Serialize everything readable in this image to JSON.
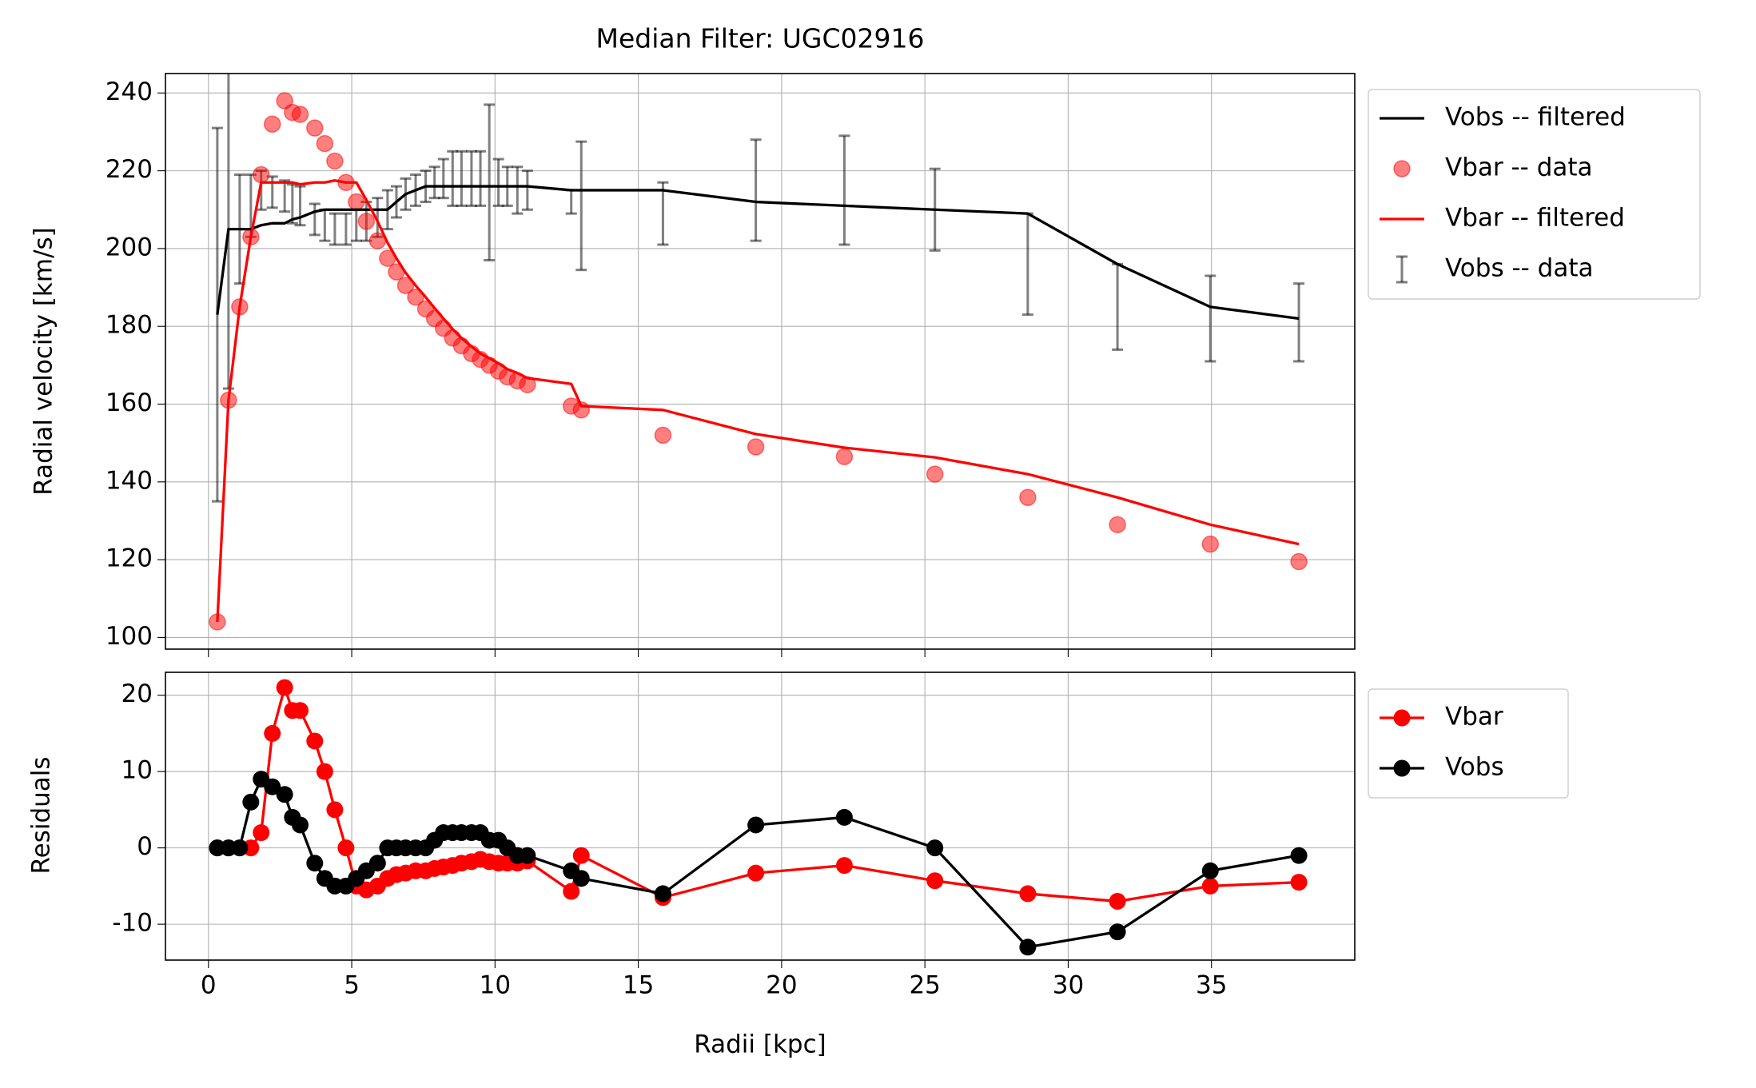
{
  "chart_data": [
    {
      "type": "line",
      "title": "Median Filter: UGC02916",
      "ylabel": "Radial velocity [km/s]",
      "grid": true,
      "xlim": [
        -1.5,
        40
      ],
      "xticks": [
        0,
        5,
        10,
        15,
        20,
        25,
        30,
        35
      ],
      "ylim": [
        97,
        245
      ],
      "yticks": [
        100,
        120,
        140,
        160,
        180,
        200,
        220,
        240
      ],
      "x": [
        0.31,
        0.7,
        1.09,
        1.48,
        1.84,
        2.23,
        2.66,
        2.93,
        3.2,
        3.71,
        4.06,
        4.41,
        4.8,
        5.16,
        5.51,
        5.9,
        6.25,
        6.56,
        6.88,
        7.23,
        7.58,
        7.89,
        8.2,
        8.52,
        8.83,
        9.18,
        9.49,
        9.8,
        10.12,
        10.43,
        10.78,
        11.13,
        12.66,
        13.01,
        15.86,
        19.1,
        22.19,
        25.35,
        28.59,
        31.72,
        34.96,
        38.05
      ],
      "series": [
        {
          "name": "Vobs -- filtered",
          "kind": "line",
          "color": "#000000",
          "values": [
            183,
            205,
            205,
            205,
            206,
            206.5,
            206.5,
            207.5,
            208,
            209.5,
            210,
            210,
            210,
            210,
            210,
            210,
            210,
            212,
            214,
            215,
            216,
            216,
            216,
            216,
            216,
            216,
            216,
            216,
            216,
            216,
            216,
            216,
            215,
            215,
            215,
            212,
            211,
            210,
            209,
            196,
            185,
            182
          ]
        },
        {
          "name": "Vbar -- data",
          "kind": "scatter",
          "color": "#ff0000",
          "values": [
            104,
            161,
            185,
            203,
            219,
            232,
            238,
            235,
            234.5,
            231,
            227,
            222.5,
            217,
            212,
            207,
            202,
            197.5,
            194,
            190.5,
            187.5,
            184.5,
            182,
            179.5,
            177,
            175,
            173,
            171.5,
            170,
            168.5,
            167,
            166,
            165,
            159.5,
            158.5,
            152,
            149,
            146.5,
            142,
            136,
            129,
            124,
            119.5
          ]
        },
        {
          "name": "Vbar -- filtered",
          "kind": "line",
          "color": "#ff0000",
          "values": [
            104,
            161,
            185,
            203,
            217,
            217,
            217,
            217,
            216.5,
            217,
            217,
            217.5,
            217,
            217,
            212.5,
            207,
            201.5,
            197.5,
            193.8,
            190.5,
            187.5,
            184.7,
            182,
            179.3,
            177,
            174.8,
            173,
            171.8,
            170.5,
            169,
            168,
            166.7,
            165.2,
            159.5,
            158.5,
            152.3,
            148.8,
            146.3,
            142,
            136,
            129,
            124
          ]
        },
        {
          "name": "Vobs -- data",
          "kind": "errorbar",
          "color": "#000000",
          "values": [
            183,
            205,
            205,
            211,
            215,
            214.5,
            213.5,
            211.5,
            211,
            207.5,
            206,
            205,
            205,
            206,
            207,
            208,
            210,
            212,
            214,
            215,
            216,
            217,
            218,
            218,
            218,
            218,
            218,
            217,
            217,
            216,
            215,
            215,
            212,
            211,
            209,
            215,
            215,
            210,
            196,
            185,
            182,
            181
          ],
          "errors": [
            48,
            41,
            14,
            8,
            5,
            4,
            4,
            5,
            5,
            4,
            4,
            4,
            4,
            4,
            5,
            5,
            5,
            4,
            4,
            4,
            4,
            4,
            5,
            7,
            7,
            7,
            7,
            20,
            6,
            5,
            6,
            5,
            3,
            16.5,
            8,
            13,
            14,
            10.5,
            13,
            11,
            11,
            10
          ]
        }
      ]
    },
    {
      "type": "line",
      "xlabel": "Radii [kpc]",
      "ylabel": "Residuals",
      "grid": true,
      "xlim": [
        -1.5,
        40
      ],
      "xticks": [
        0,
        5,
        10,
        15,
        20,
        25,
        30,
        35
      ],
      "ylim": [
        -14.7,
        23
      ],
      "yticks": [
        -10,
        0,
        10,
        20
      ],
      "x": [
        0.31,
        0.7,
        1.09,
        1.48,
        1.84,
        2.23,
        2.66,
        2.93,
        3.2,
        3.71,
        4.06,
        4.41,
        4.8,
        5.16,
        5.51,
        5.9,
        6.25,
        6.56,
        6.88,
        7.23,
        7.58,
        7.89,
        8.2,
        8.52,
        8.83,
        9.18,
        9.49,
        9.8,
        10.12,
        10.43,
        10.78,
        11.13,
        12.66,
        13.01,
        15.86,
        19.1,
        22.19,
        25.35,
        28.59,
        31.72,
        34.96,
        38.05
      ],
      "series": [
        {
          "name": "Vbar",
          "kind": "line-marker",
          "color": "#ff0000",
          "values": [
            0,
            0,
            0,
            0,
            2,
            15,
            21,
            18,
            18,
            14,
            10,
            5,
            0,
            -5,
            -5.5,
            -5,
            -4,
            -3.5,
            -3.3,
            -3,
            -3,
            -2.7,
            -2.5,
            -2.3,
            -2,
            -1.8,
            -1.5,
            -1.8,
            -2,
            -2,
            -2,
            -1.7,
            -5.7,
            -1,
            -6.5,
            -3.3,
            -2.3,
            -4.3,
            -6,
            -7,
            -5,
            -4.5
          ]
        },
        {
          "name": "Vobs",
          "kind": "line-marker",
          "color": "#000000",
          "values": [
            0,
            0,
            0,
            6,
            9,
            8,
            7,
            4,
            3,
            -2,
            -4,
            -5,
            -5,
            -4,
            -3,
            -2,
            0,
            0,
            0,
            0,
            0,
            1,
            2,
            2,
            2,
            2,
            2,
            1,
            1,
            0,
            -1,
            -1,
            -3,
            -4,
            -6,
            3,
            4,
            0,
            -13,
            -11,
            -3,
            -1
          ]
        }
      ]
    }
  ]
}
